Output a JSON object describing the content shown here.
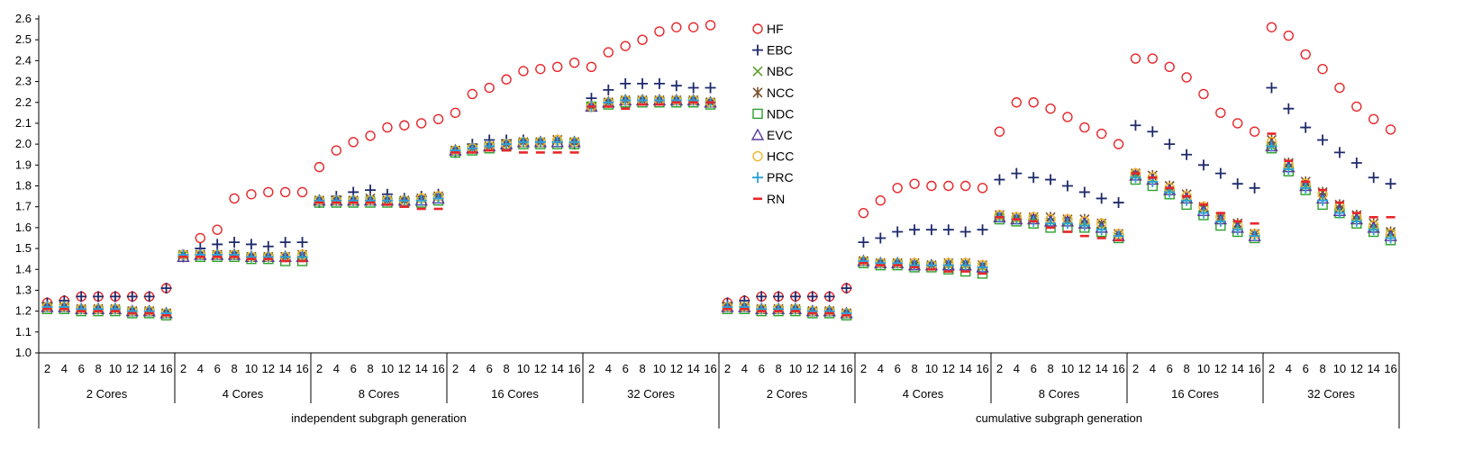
{
  "chart_data": {
    "type": "scatter",
    "title": "",
    "xlabel": "",
    "ylabel": "",
    "ylim": [
      1.0,
      2.6
    ],
    "yticks": [
      "1.0",
      "1.1",
      "1.2",
      "1.3",
      "1.4",
      "1.5",
      "1.6",
      "1.7",
      "1.8",
      "1.9",
      "2.0",
      "2.1",
      "2.2",
      "2.3",
      "2.4",
      "2.5",
      "2.6"
    ],
    "grid": false,
    "legend_position": "top-center",
    "x_levels": {
      "subgraph_sizes": [
        "2",
        "4",
        "6",
        "8",
        "10",
        "12",
        "14",
        "16"
      ],
      "cores": [
        "2 Cores",
        "4 Cores",
        "8 Cores",
        "16 Cores",
        "32 Cores"
      ],
      "modes": [
        "independent subgraph generation",
        "cumulative subgraph generation"
      ]
    },
    "series": [
      {
        "name": "HF",
        "marker": "circle",
        "color": "#e8262a",
        "values": [
          1.24,
          1.25,
          1.27,
          1.27,
          1.27,
          1.27,
          1.27,
          1.31,
          1.47,
          1.55,
          1.59,
          1.74,
          1.76,
          1.77,
          1.77,
          1.77,
          1.89,
          1.97,
          2.01,
          2.04,
          2.08,
          2.09,
          2.1,
          2.12,
          2.15,
          2.24,
          2.27,
          2.31,
          2.35,
          2.36,
          2.37,
          2.39,
          2.37,
          2.44,
          2.47,
          2.5,
          2.54,
          2.56,
          2.56,
          2.57,
          1.24,
          1.25,
          1.27,
          1.27,
          1.27,
          1.27,
          1.27,
          1.31,
          1.67,
          1.73,
          1.79,
          1.81,
          1.8,
          1.8,
          1.8,
          1.79,
          2.06,
          2.2,
          2.2,
          2.17,
          2.13,
          2.08,
          2.05,
          2.0,
          2.41,
          2.41,
          2.37,
          2.32,
          2.24,
          2.15,
          2.1,
          2.06,
          2.56,
          2.52,
          2.43,
          2.36,
          2.27,
          2.18,
          2.12,
          2.07
        ]
      },
      {
        "name": "EBC",
        "marker": "plus",
        "color": "#1f2a6b",
        "values": [
          1.24,
          1.25,
          1.27,
          1.27,
          1.27,
          1.27,
          1.27,
          1.31,
          1.46,
          1.5,
          1.52,
          1.53,
          1.52,
          1.51,
          1.53,
          1.53,
          1.72,
          1.75,
          1.77,
          1.78,
          1.76,
          1.74,
          1.75,
          1.76,
          1.96,
          2.0,
          2.02,
          2.02,
          2.02,
          2.01,
          2.01,
          2.0,
          2.22,
          2.26,
          2.29,
          2.29,
          2.29,
          2.28,
          2.27,
          2.27,
          1.24,
          1.25,
          1.27,
          1.27,
          1.27,
          1.27,
          1.27,
          1.31,
          1.53,
          1.55,
          1.58,
          1.59,
          1.59,
          1.59,
          1.58,
          1.59,
          1.83,
          1.86,
          1.84,
          1.83,
          1.8,
          1.77,
          1.74,
          1.72,
          2.09,
          2.06,
          2.0,
          1.95,
          1.9,
          1.86,
          1.81,
          1.79,
          2.27,
          2.17,
          2.08,
          2.02,
          1.96,
          1.91,
          1.84,
          1.81
        ]
      },
      {
        "name": "NBC",
        "marker": "x",
        "color": "#5aa02c",
        "values": [
          1.22,
          1.22,
          1.21,
          1.21,
          1.21,
          1.2,
          1.2,
          1.19,
          1.47,
          1.47,
          1.47,
          1.47,
          1.46,
          1.46,
          1.46,
          1.46,
          1.73,
          1.73,
          1.73,
          1.73,
          1.73,
          1.73,
          1.74,
          1.75,
          1.97,
          1.98,
          1.99,
          2.0,
          2.01,
          2.01,
          2.02,
          2.01,
          2.18,
          2.2,
          2.21,
          2.21,
          2.21,
          2.21,
          2.21,
          2.2,
          1.22,
          1.22,
          1.21,
          1.21,
          1.21,
          1.2,
          1.2,
          1.19,
          1.44,
          1.43,
          1.43,
          1.42,
          1.42,
          1.42,
          1.42,
          1.41,
          1.65,
          1.64,
          1.64,
          1.63,
          1.63,
          1.62,
          1.61,
          1.57,
          1.85,
          1.83,
          1.78,
          1.74,
          1.69,
          1.64,
          1.61,
          1.57,
          1.99,
          1.89,
          1.8,
          1.75,
          1.69,
          1.64,
          1.6,
          1.57
        ]
      },
      {
        "name": "NCC",
        "marker": "star",
        "color": "#7a5230",
        "values": [
          1.22,
          1.22,
          1.21,
          1.21,
          1.21,
          1.2,
          1.2,
          1.19,
          1.47,
          1.47,
          1.47,
          1.47,
          1.46,
          1.46,
          1.46,
          1.47,
          1.73,
          1.73,
          1.73,
          1.74,
          1.73,
          1.73,
          1.74,
          1.75,
          1.97,
          1.98,
          1.99,
          2.0,
          2.01,
          2.01,
          2.02,
          2.01,
          2.18,
          2.2,
          2.21,
          2.21,
          2.21,
          2.21,
          2.21,
          2.2,
          1.22,
          1.22,
          1.21,
          1.21,
          1.21,
          1.2,
          1.2,
          1.19,
          1.44,
          1.43,
          1.43,
          1.43,
          1.42,
          1.43,
          1.43,
          1.42,
          1.66,
          1.65,
          1.65,
          1.65,
          1.64,
          1.64,
          1.62,
          1.57,
          1.86,
          1.85,
          1.8,
          1.76,
          1.7,
          1.65,
          1.62,
          1.57,
          2.02,
          1.91,
          1.82,
          1.77,
          1.71,
          1.66,
          1.62,
          1.58
        ]
      },
      {
        "name": "NDC",
        "marker": "square",
        "color": "#2ca02c",
        "values": [
          1.21,
          1.21,
          1.2,
          1.2,
          1.2,
          1.19,
          1.19,
          1.18,
          1.46,
          1.46,
          1.46,
          1.46,
          1.45,
          1.45,
          1.44,
          1.44,
          1.72,
          1.72,
          1.72,
          1.72,
          1.72,
          1.72,
          1.72,
          1.73,
          1.96,
          1.97,
          1.98,
          1.99,
          2.0,
          2.0,
          2.0,
          2.0,
          2.18,
          2.19,
          2.2,
          2.2,
          2.2,
          2.2,
          2.2,
          2.19,
          1.21,
          1.21,
          1.2,
          1.2,
          1.2,
          1.19,
          1.19,
          1.18,
          1.43,
          1.42,
          1.42,
          1.41,
          1.41,
          1.4,
          1.39,
          1.38,
          1.64,
          1.63,
          1.62,
          1.6,
          1.6,
          1.6,
          1.58,
          1.55,
          1.83,
          1.8,
          1.76,
          1.71,
          1.66,
          1.61,
          1.58,
          1.55,
          1.98,
          1.87,
          1.78,
          1.71,
          1.67,
          1.62,
          1.58,
          1.54
        ]
      },
      {
        "name": "EVC",
        "marker": "triangle",
        "color": "#5b3a9e",
        "values": [
          1.22,
          1.22,
          1.21,
          1.21,
          1.21,
          1.2,
          1.2,
          1.19,
          1.46,
          1.47,
          1.47,
          1.47,
          1.46,
          1.46,
          1.46,
          1.46,
          1.73,
          1.73,
          1.73,
          1.73,
          1.73,
          1.73,
          1.73,
          1.74,
          1.97,
          1.98,
          1.99,
          2.0,
          2.01,
          2.01,
          2.01,
          2.01,
          2.18,
          2.2,
          2.21,
          2.21,
          2.21,
          2.21,
          2.21,
          2.2,
          1.22,
          1.22,
          1.21,
          1.21,
          1.21,
          1.2,
          1.2,
          1.19,
          1.44,
          1.43,
          1.43,
          1.42,
          1.42,
          1.42,
          1.42,
          1.41,
          1.65,
          1.64,
          1.64,
          1.63,
          1.63,
          1.62,
          1.6,
          1.56,
          1.85,
          1.83,
          1.78,
          1.74,
          1.68,
          1.64,
          1.6,
          1.56,
          1.99,
          1.89,
          1.8,
          1.74,
          1.68,
          1.64,
          1.6,
          1.56
        ]
      },
      {
        "name": "HCC",
        "marker": "circle",
        "color": "#f0b429",
        "values": [
          1.22,
          1.22,
          1.21,
          1.21,
          1.21,
          1.2,
          1.2,
          1.19,
          1.47,
          1.47,
          1.47,
          1.47,
          1.46,
          1.46,
          1.46,
          1.47,
          1.73,
          1.73,
          1.73,
          1.73,
          1.73,
          1.73,
          1.74,
          1.75,
          1.97,
          1.98,
          1.99,
          2.0,
          2.01,
          2.01,
          2.02,
          2.01,
          2.18,
          2.2,
          2.21,
          2.21,
          2.21,
          2.21,
          2.21,
          2.2,
          1.22,
          1.22,
          1.21,
          1.21,
          1.21,
          1.2,
          1.2,
          1.19,
          1.44,
          1.43,
          1.43,
          1.43,
          1.42,
          1.43,
          1.43,
          1.42,
          1.66,
          1.65,
          1.65,
          1.64,
          1.64,
          1.63,
          1.62,
          1.57,
          1.86,
          1.84,
          1.79,
          1.75,
          1.7,
          1.65,
          1.61,
          1.57,
          2.01,
          1.9,
          1.81,
          1.76,
          1.7,
          1.65,
          1.61,
          1.57
        ]
      },
      {
        "name": "PRC",
        "marker": "plus",
        "color": "#2aa1d8",
        "values": [
          1.22,
          1.22,
          1.21,
          1.21,
          1.21,
          1.2,
          1.2,
          1.19,
          1.47,
          1.47,
          1.47,
          1.47,
          1.46,
          1.46,
          1.46,
          1.46,
          1.73,
          1.73,
          1.73,
          1.73,
          1.73,
          1.73,
          1.73,
          1.74,
          1.97,
          1.98,
          1.99,
          2.0,
          2.01,
          2.01,
          2.01,
          2.01,
          2.18,
          2.2,
          2.21,
          2.21,
          2.21,
          2.21,
          2.21,
          2.2,
          1.22,
          1.22,
          1.21,
          1.21,
          1.21,
          1.2,
          1.2,
          1.19,
          1.44,
          1.43,
          1.43,
          1.42,
          1.42,
          1.42,
          1.42,
          1.41,
          1.65,
          1.64,
          1.63,
          1.62,
          1.62,
          1.61,
          1.59,
          1.56,
          1.84,
          1.82,
          1.77,
          1.73,
          1.67,
          1.63,
          1.59,
          1.56,
          1.99,
          1.88,
          1.79,
          1.73,
          1.67,
          1.63,
          1.59,
          1.55
        ]
      },
      {
        "name": "RN",
        "marker": "dash",
        "color": "#e8262a",
        "values": [
          1.21,
          1.21,
          1.2,
          1.2,
          1.2,
          1.19,
          1.19,
          1.18,
          1.46,
          1.46,
          1.46,
          1.46,
          1.45,
          1.45,
          1.44,
          1.44,
          1.72,
          1.72,
          1.72,
          1.72,
          1.71,
          1.7,
          1.69,
          1.69,
          1.96,
          1.96,
          1.97,
          1.97,
          1.96,
          1.96,
          1.96,
          1.96,
          2.18,
          2.18,
          2.17,
          2.19,
          2.19,
          2.2,
          2.2,
          2.2,
          1.21,
          1.21,
          1.2,
          1.2,
          1.2,
          1.19,
          1.19,
          1.18,
          1.43,
          1.42,
          1.42,
          1.41,
          1.4,
          1.39,
          1.39,
          1.38,
          1.65,
          1.64,
          1.63,
          1.6,
          1.58,
          1.56,
          1.55,
          1.54,
          1.86,
          1.84,
          1.79,
          1.75,
          1.71,
          1.67,
          1.63,
          1.62,
          2.05,
          1.92,
          1.82,
          1.78,
          1.72,
          1.67,
          1.65,
          1.65
        ]
      }
    ]
  }
}
